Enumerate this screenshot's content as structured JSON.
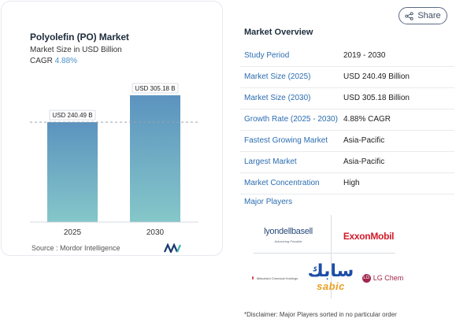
{
  "chart": {
    "title": "Polyolefin (PO) Market",
    "subtitle": "Market Size in USD Billion",
    "cagr_label": "CAGR",
    "cagr_value": "4.88%",
    "source": "Source : Mordor Intelligence",
    "bar_color_top": "#5b93bf",
    "bar_color_bottom": "#85c7c9"
  },
  "chart_data": {
    "type": "bar",
    "categories": [
      "2025",
      "2030"
    ],
    "values": [
      240.49,
      305.18
    ],
    "data_labels": [
      "USD 240.49 B",
      "USD 305.18 B"
    ],
    "title": "Polyolefin (PO) Market",
    "ylabel": "Market Size in USD Billion",
    "ylim": [
      0,
      305.18
    ],
    "grid": false
  },
  "share": {
    "label": "Share",
    "icon": "share-icon"
  },
  "overview": {
    "title": "Market Overview",
    "rows": [
      {
        "k": "Study Period",
        "v": "2019 - 2030"
      },
      {
        "k": "Market Size (2025)",
        "v": "USD 240.49 Billion"
      },
      {
        "k": "Market Size (2030)",
        "v": "USD 305.18 Billion"
      },
      {
        "k": "Growth Rate (2025 - 2030)",
        "v": "4.88% CAGR"
      },
      {
        "k": "Fastest Growing Market",
        "v": "Asia-Pacific"
      },
      {
        "k": "Largest Market",
        "v": "Asia-Pacific"
      },
      {
        "k": "Market Concentration",
        "v": "High"
      }
    ],
    "players_label": "Major Players",
    "players": {
      "lyondell": "lyondellbasell",
      "lyondell_tag": "Advancing Possible",
      "exxon": "ExxonMobil",
      "sabic_ar": "سابك",
      "sabic_en": "sabic",
      "mitsubishi": "Mitsubishi Chemical Holdings",
      "lgchem": "LG Chem",
      "lg_mark": "LG"
    },
    "disclaimer": "*Disclaimer: Major Players sorted in no particular order"
  }
}
